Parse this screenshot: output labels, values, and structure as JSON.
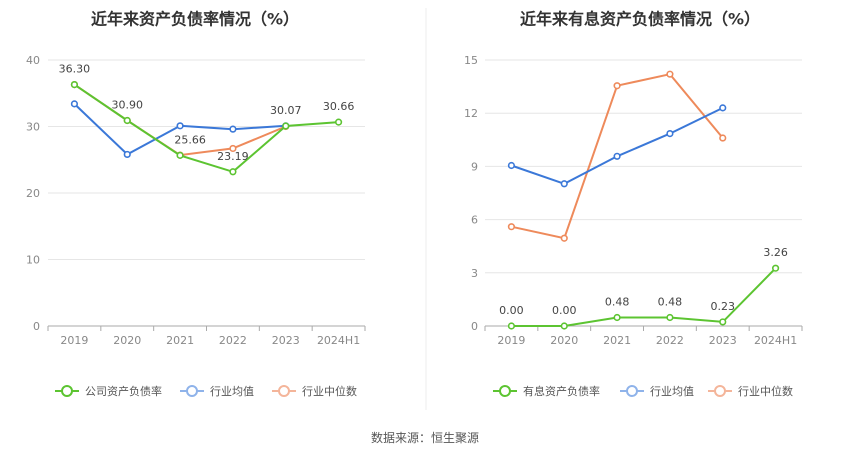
{
  "source": "数据来源：恒生聚源",
  "chart_data": [
    {
      "type": "line",
      "title": "近年来资产负债率情况（%）",
      "categories": [
        "2019",
        "2020",
        "2021",
        "2022",
        "2023",
        "2024H1"
      ],
      "ylim": [
        0,
        40
      ],
      "yticks": [
        0,
        10,
        20,
        30,
        40
      ],
      "grid": true,
      "legend_position": "bottom",
      "series": [
        {
          "name": "公司资产负债率",
          "color": "#5cc431",
          "values": [
            36.3,
            30.9,
            25.66,
            23.19,
            30.07,
            30.66
          ],
          "labels": [
            "36.30",
            "30.90",
            "25.66",
            "23.19",
            "30.07",
            "30.66"
          ]
        },
        {
          "name": "行业均值",
          "color": "#3b78d8",
          "values": [
            33.4,
            25.8,
            30.1,
            29.6,
            30.1,
            null
          ]
        },
        {
          "name": "行业中位数",
          "color": "#ee8a5b",
          "values": [
            36.3,
            30.9,
            25.7,
            26.7,
            30.0,
            null
          ]
        }
      ]
    },
    {
      "type": "line",
      "title": "近年来有息资产负债率情况（%）",
      "categories": [
        "2019",
        "2020",
        "2021",
        "2022",
        "2023",
        "2024H1"
      ],
      "ylim": [
        0,
        15
      ],
      "yticks": [
        0,
        3,
        6,
        9,
        12,
        15
      ],
      "grid": true,
      "legend_position": "bottom",
      "series": [
        {
          "name": "有息资产负债率",
          "color": "#5cc431",
          "values": [
            0.0,
            0.0,
            0.48,
            0.48,
            0.23,
            3.26
          ],
          "labels": [
            "0.00",
            "0.00",
            "0.48",
            "0.48",
            "0.23",
            "3.26"
          ]
        },
        {
          "name": "行业均值",
          "color": "#3b78d8",
          "values": [
            9.05,
            8.02,
            9.57,
            10.85,
            12.3,
            null
          ]
        },
        {
          "name": "行业中位数",
          "color": "#ee8a5b",
          "values": [
            5.6,
            4.95,
            13.55,
            14.2,
            10.6,
            null
          ]
        }
      ]
    }
  ]
}
